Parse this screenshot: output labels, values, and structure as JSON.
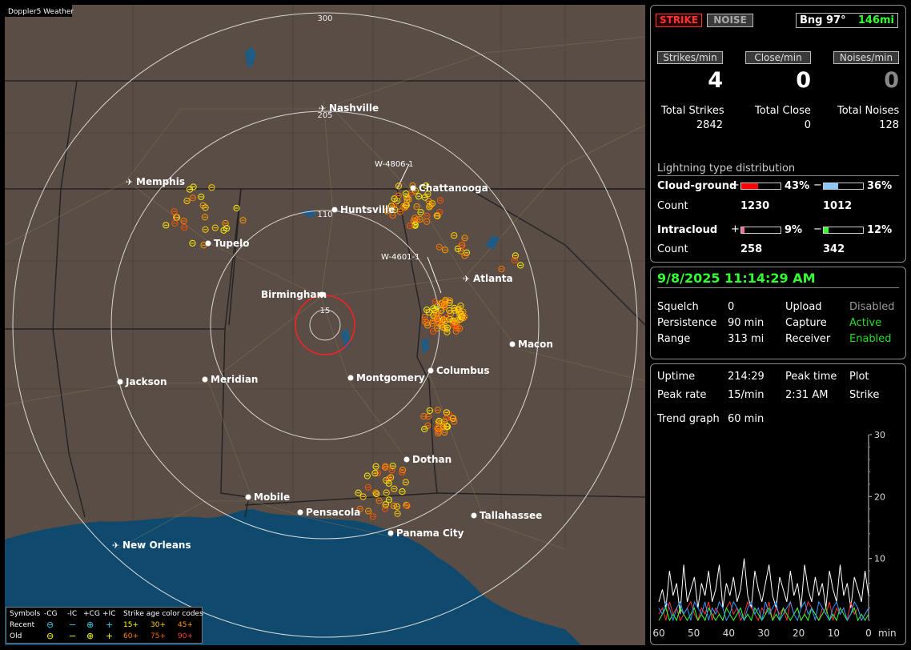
{
  "app_title": "Doppler5 Weather",
  "colors": {
    "strike_active": "#ff3333",
    "green": "#33ff33",
    "accent_green": "#22dd22"
  },
  "map": {
    "range_labels": [
      "300",
      "205",
      "110",
      "15"
    ],
    "storm_labels": [
      "W-4806-1",
      "W-4601-1"
    ],
    "cities": [
      {
        "name": "Nashville",
        "type": "airport"
      },
      {
        "name": "Memphis",
        "type": "airport"
      },
      {
        "name": "Chattanooga",
        "type": "city"
      },
      {
        "name": "Huntsville",
        "type": "city"
      },
      {
        "name": "Tupelo",
        "type": "city"
      },
      {
        "name": "Atlanta",
        "type": "airport"
      },
      {
        "name": "Birmingham",
        "type": "city"
      },
      {
        "name": "Macon",
        "type": "city"
      },
      {
        "name": "Jackson",
        "type": "city"
      },
      {
        "name": "Meridian",
        "type": "city"
      },
      {
        "name": "Montgomery",
        "type": "city"
      },
      {
        "name": "Columbus",
        "type": "city"
      },
      {
        "name": "Dothan",
        "type": "city"
      },
      {
        "name": "Mobile",
        "type": "city"
      },
      {
        "name": "Pensacola",
        "type": "city"
      },
      {
        "name": "Tallahassee",
        "type": "city"
      },
      {
        "name": "Panama City",
        "type": "city"
      },
      {
        "name": "New Orleans",
        "type": "airport"
      }
    ]
  },
  "legend": {
    "row0": [
      "Symbols",
      "-CG",
      "-IC",
      "+CG",
      "+IC",
      "Strike age color codes"
    ],
    "recent_label": "Recent",
    "old_label": "Old",
    "recent_ages": [
      "15+",
      "30+",
      "45+"
    ],
    "old_ages": [
      "60+",
      "75+",
      "90+"
    ]
  },
  "top": {
    "strike_button": "STRIKE",
    "noise_button": "NOISE",
    "bearing": "Bng 97°",
    "distance": "146mi",
    "labels": {
      "strikes": "Strikes/min",
      "close": "Close/min",
      "noises": "Noises/min"
    },
    "values": {
      "strikes": "4",
      "close": "0",
      "noises": "0"
    },
    "totals_labels": {
      "strikes": "Total Strikes",
      "close": "Total Close",
      "noises": "Total Noises"
    },
    "totals": {
      "strikes": "2842",
      "close": "0",
      "noises": "128"
    },
    "dist_title": "Lightning type distribution",
    "cg_label": "Cloud-ground",
    "ic_label": "Intracloud",
    "count_label": "Count",
    "plus": "+",
    "minus": "−",
    "cg_pos_pct": "43%",
    "cg_neg_pct": "36%",
    "ic_pos_pct": "9%",
    "ic_neg_pct": "12%",
    "cg_pos_count": "1230",
    "cg_neg_count": "1012",
    "ic_pos_count": "258",
    "ic_neg_count": "342",
    "cg_pos_fraction": 0.43,
    "cg_neg_fraction": 0.36,
    "ic_pos_fraction": 0.09,
    "ic_neg_fraction": 0.12
  },
  "status": {
    "datetime": "9/8/2025 11:14:29 AM",
    "squelch_label": "Squelch",
    "squelch": "0",
    "persistence_label": "Persistence",
    "persistence": "90 min",
    "range_label": "Range",
    "range": "313 mi",
    "upload_label": "Upload",
    "upload": "Disabled",
    "capture_label": "Capture",
    "capture": "Active",
    "receiver_label": "Receiver",
    "receiver": "Enabled"
  },
  "trend": {
    "uptime_label": "Uptime",
    "uptime": "214:29",
    "peak_time_label": "Peak time",
    "peak_time": "2:31 AM",
    "plot_label": "Plot",
    "plot": "Strike",
    "peak_rate_label": "Peak rate",
    "peak_rate": "15/min",
    "trend_graph_label": "Trend graph",
    "trend_graph": "60 min"
  },
  "chart_data": {
    "type": "line",
    "x_unit": "min",
    "x_ticks": [
      "60",
      "50",
      "40",
      "30",
      "20",
      "10",
      "0"
    ],
    "y_ticks": [
      "30",
      "20",
      "10"
    ],
    "ylim": [
      0,
      30
    ],
    "series": [
      {
        "color": "#ffffff",
        "values": [
          3,
          5,
          2,
          8,
          4,
          6,
          1,
          9,
          3,
          5,
          7,
          2,
          6,
          4,
          8,
          3,
          5,
          9,
          2,
          6,
          4,
          7,
          3,
          5,
          10,
          4,
          2,
          8,
          5,
          3,
          6,
          9,
          4,
          2,
          7,
          5,
          3,
          8,
          4,
          6,
          2,
          9,
          5,
          3,
          7,
          4,
          6,
          2,
          8,
          5,
          3,
          9,
          4,
          6,
          2,
          7,
          5,
          3,
          8,
          4
        ]
      },
      {
        "color": "#ff3333",
        "values": [
          1,
          2,
          0,
          3,
          1,
          2,
          0,
          1,
          2,
          3,
          1,
          0,
          2,
          1,
          3,
          0,
          2,
          1,
          0,
          2,
          3,
          1,
          2,
          0,
          1,
          3,
          2,
          1,
          0,
          2,
          1,
          3,
          0,
          2,
          1,
          2,
          0,
          3,
          1,
          2,
          0,
          1,
          3,
          2,
          1,
          0,
          2,
          1,
          3,
          0,
          2,
          1,
          2,
          0,
          3,
          1,
          2,
          0,
          1,
          2
        ]
      },
      {
        "color": "#33ff33",
        "values": [
          0,
          1,
          2,
          0,
          1,
          0,
          2,
          1,
          0,
          1,
          2,
          0,
          1,
          0,
          2,
          1,
          0,
          1,
          0,
          2,
          1,
          0,
          1,
          2,
          0,
          1,
          0,
          2,
          1,
          0,
          1,
          2,
          0,
          1,
          0,
          2,
          1,
          0,
          1,
          2,
          0,
          1,
          0,
          2,
          1,
          0,
          1,
          2,
          0,
          1,
          0,
          2,
          1,
          0,
          1,
          2,
          0,
          1,
          0,
          1
        ]
      },
      {
        "color": "#3399ff",
        "values": [
          2,
          1,
          3,
          2,
          0,
          2,
          3,
          1,
          2,
          0,
          3,
          2,
          1,
          3,
          0,
          2,
          1,
          3,
          2,
          0,
          1,
          3,
          2,
          1,
          0,
          2,
          3,
          1,
          2,
          0,
          3,
          1,
          2,
          3,
          0,
          1,
          2,
          3,
          1,
          0,
          2,
          3,
          1,
          2,
          0,
          3,
          2,
          1,
          0,
          2,
          3,
          1,
          2,
          0,
          1,
          3,
          2,
          0,
          1,
          2
        ]
      }
    ]
  }
}
